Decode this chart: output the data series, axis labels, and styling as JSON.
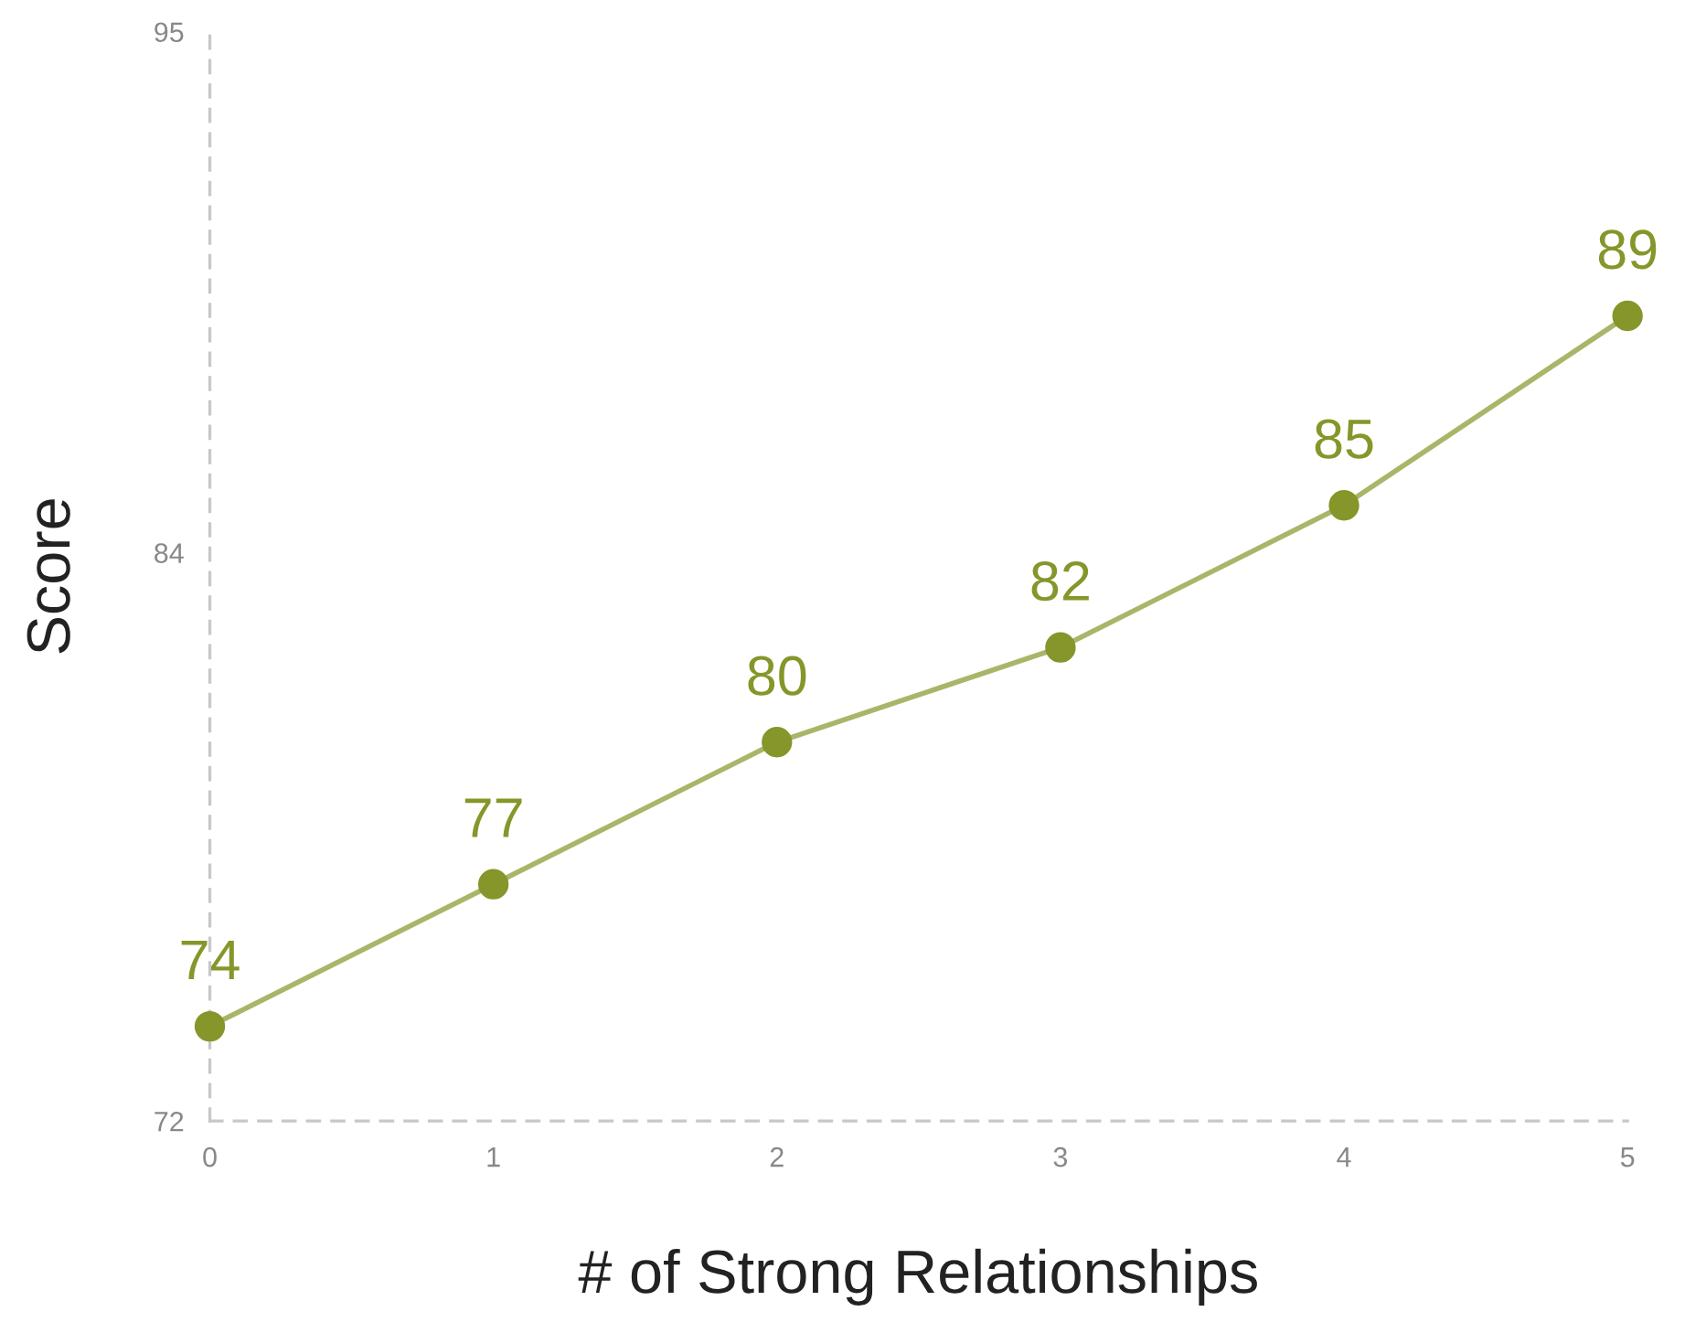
{
  "chart_data": {
    "type": "line",
    "xlabel": "# of Strong Relationships",
    "ylabel": "Score",
    "x": [
      0,
      1,
      2,
      3,
      4,
      5
    ],
    "series": [
      {
        "color": "#86962a",
        "values": [
          74,
          77,
          80,
          82,
          85,
          89
        ]
      }
    ],
    "xlim": [
      0,
      5
    ],
    "ylim": [
      72,
      95
    ],
    "xticks": [
      0,
      1,
      2,
      3,
      4,
      5
    ],
    "yticks": [
      72,
      84,
      95
    ],
    "marker": "circle",
    "line_style": "solid",
    "grid": false,
    "data_labels": true
  }
}
